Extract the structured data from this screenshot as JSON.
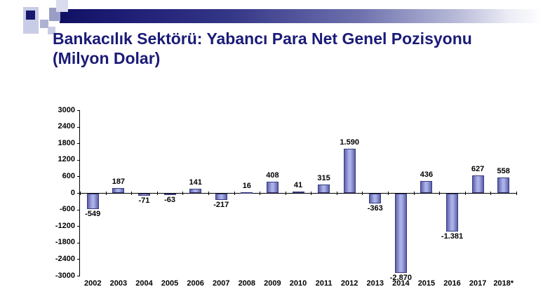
{
  "slide": {
    "title_line1": "Bankacılık Sektörü: Yabancı Para Net Genel Pozisyonu",
    "title_line2": "(Milyon Dolar)"
  },
  "theme": {
    "title_color": "#1b1b78",
    "header_bar_dark": "#101063",
    "bar_fill_light": "#aab0e8",
    "bar_fill_dark": "#5c60a8",
    "bar_border": "#3a3d80",
    "axis_color": "#000000",
    "background": "#ffffff"
  },
  "chart_data": {
    "type": "bar",
    "title": "Bankacılık Sektörü: Yabancı Para Net Genel Pozisyonu (Milyon Dolar)",
    "xlabel": "",
    "ylabel": "",
    "categories": [
      "2002",
      "2003",
      "2004",
      "2005",
      "2006",
      "2007",
      "2008",
      "2009",
      "2010",
      "2011",
      "2012",
      "2013",
      "2014",
      "2015",
      "2016",
      "2017",
      "2018*"
    ],
    "values": [
      -549,
      187,
      -71,
      -63,
      141,
      -217,
      16,
      408,
      41,
      315,
      1590,
      -363,
      -2870,
      436,
      -1381,
      627,
      558
    ],
    "value_labels": [
      "-549",
      "187",
      "-71",
      "-63",
      "141",
      "-217",
      "16",
      "408",
      "41",
      "315",
      "1.590",
      "-363",
      "-2.870",
      "436",
      "-1.381",
      "627",
      "558"
    ],
    "ylim": [
      -3000,
      3000
    ],
    "ytick_step": 600,
    "ytick_labels": [
      "3000",
      "2400",
      "1800",
      "1200",
      "600",
      "0",
      "-600",
      "-1200",
      "-1800",
      "-2400",
      "-3000"
    ],
    "grid": false,
    "legend": false
  }
}
